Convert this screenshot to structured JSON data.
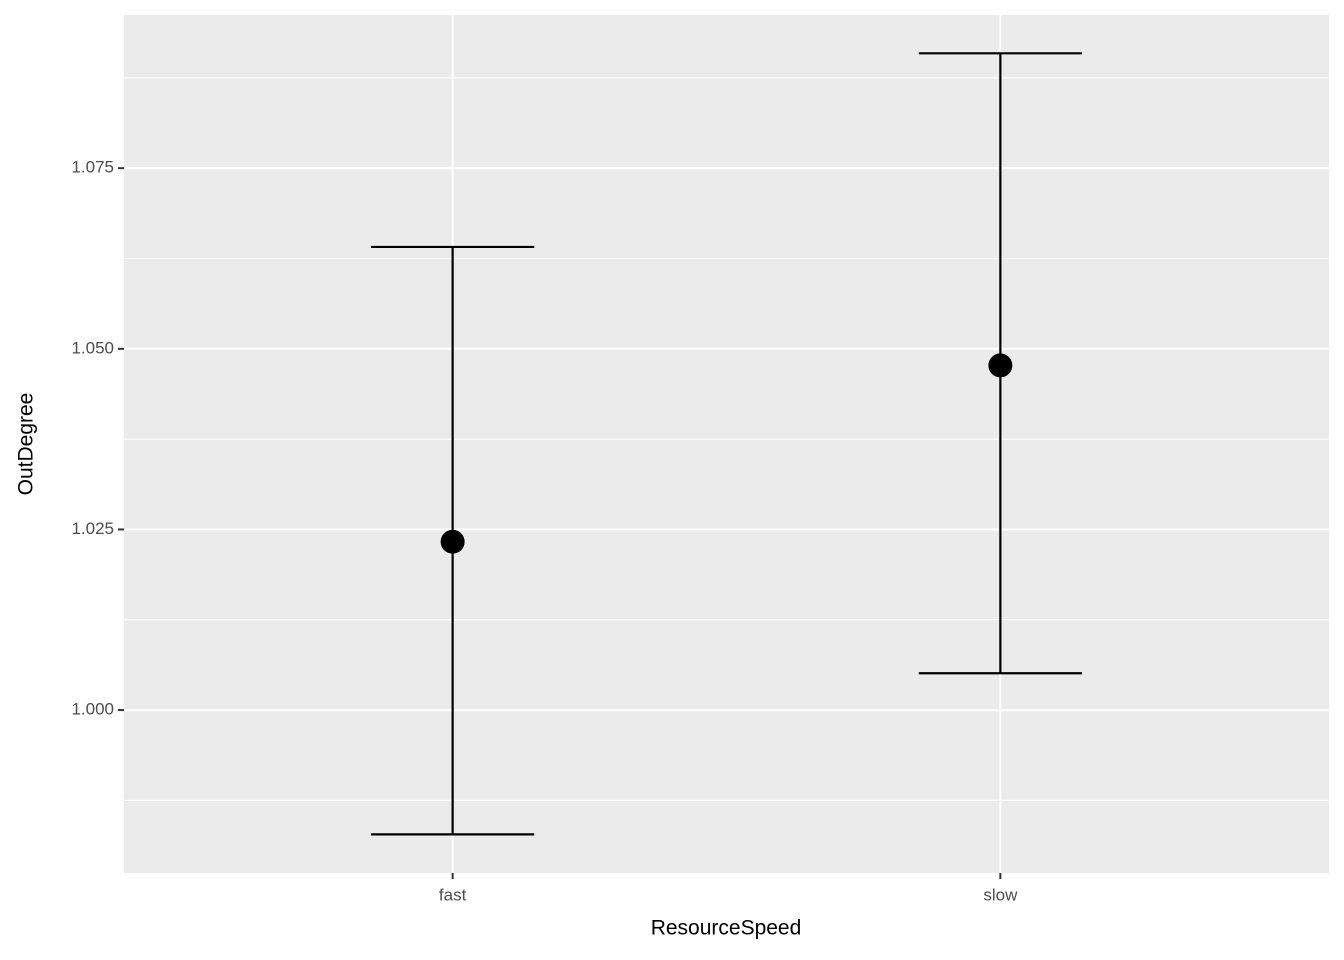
{
  "chart_data": {
    "type": "errorbar",
    "x_label": "ResourceSpeed",
    "y_label": "OutDegree",
    "categories": [
      "fast",
      "slow"
    ],
    "values": [
      1.0233,
      1.0477
    ],
    "lower": [
      0.9828,
      1.0051
    ],
    "upper": [
      1.0641,
      1.0909
    ],
    "color": "#000000",
    "ylim": [
      0.97745,
      1.0962
    ],
    "yticks": [
      {
        "value": 1.0,
        "label": "1.000"
      },
      {
        "value": 1.025,
        "label": "1.025"
      },
      {
        "value": 1.05,
        "label": "1.050"
      },
      {
        "value": 1.075,
        "label": "1.075"
      }
    ],
    "grid": true
  }
}
